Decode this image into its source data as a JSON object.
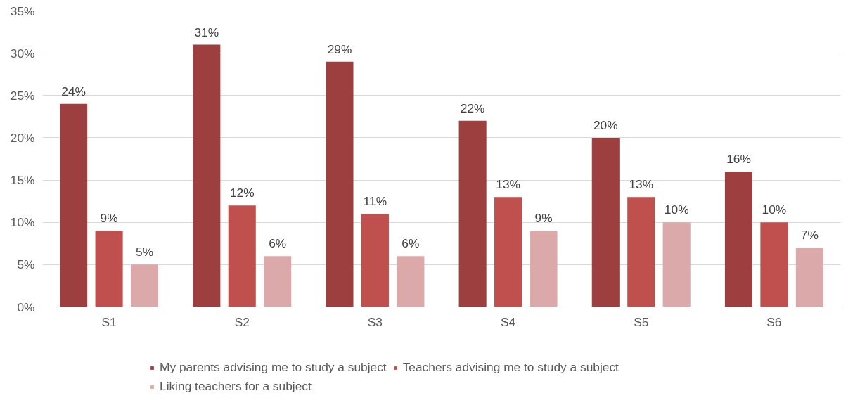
{
  "chart_data": {
    "type": "bar",
    "categories": [
      "S1",
      "S2",
      "S3",
      "S4",
      "S5",
      "S6"
    ],
    "series": [
      {
        "name": "My parents advising me to study a subject",
        "color": "#9e3f3f",
        "values": [
          24,
          31,
          29,
          22,
          20,
          16
        ],
        "value_labels": [
          "24%",
          "31%",
          "29%",
          "22%",
          "20%",
          "16%"
        ]
      },
      {
        "name": "Teachers advising me to study a subject",
        "color": "#c0504d",
        "values": [
          9,
          12,
          11,
          13,
          13,
          10
        ],
        "value_labels": [
          "9%",
          "12%",
          "11%",
          "13%",
          "13%",
          "10%"
        ]
      },
      {
        "name": "Liking teachers for a subject",
        "color": "#dba9a9",
        "values": [
          5,
          6,
          6,
          9,
          10,
          7
        ],
        "value_labels": [
          "5%",
          "6%",
          "6%",
          "9%",
          "10%",
          "7%"
        ]
      }
    ],
    "ylim": [
      0,
      35
    ],
    "yticks": [
      {
        "value": 0,
        "label": "0%"
      },
      {
        "value": 5,
        "label": "5%"
      },
      {
        "value": 10,
        "label": "10%"
      },
      {
        "value": 15,
        "label": "15%"
      },
      {
        "value": 20,
        "label": "20%"
      },
      {
        "value": 25,
        "label": "25%"
      },
      {
        "value": 30,
        "label": "30%"
      },
      {
        "value": 35,
        "label": "35%"
      }
    ],
    "grid": "y",
    "legend": "bottom"
  }
}
